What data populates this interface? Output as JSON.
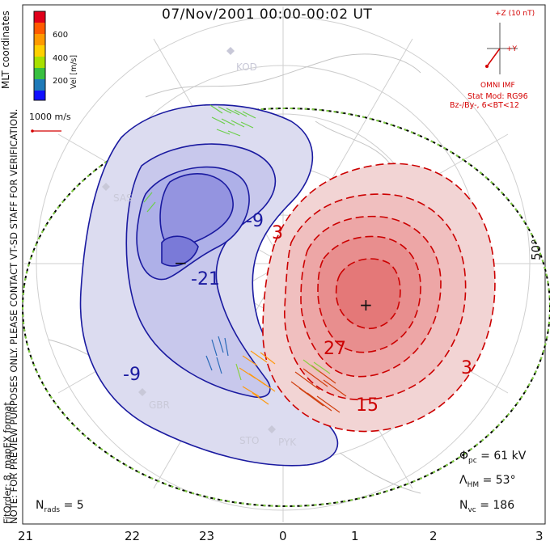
{
  "title": "07/Nov/2001 00:00-00:02 UT",
  "colorbar": {
    "label": "Vel [m/s]",
    "ticks": [
      "600",
      "400",
      "200"
    ],
    "colors": [
      "#e0001a",
      "#ff5a00",
      "#ffb000",
      "#a8e000",
      "#38c040",
      "#2aa08a",
      "#1060c0",
      "#1010ff"
    ]
  },
  "coords_label": "MLT coordinates",
  "velocity_scale": "1000 m/s",
  "imf": {
    "z_label": "+Z (10 nT)",
    "y_label": "+Y",
    "source": "OMNI IMF",
    "stat_mod": "Stat Mod: RG96",
    "condition": "Bz-/By-, 6<BT<12"
  },
  "note_lines": [
    "NOTE: FOR PREVIEW PURPOSES ONLY. PLEASE CONTACT VT-SD STAFF FOR VERIFICATION.",
    "FitOrder: 8, mapEX format"
  ],
  "latitude_label": "50°",
  "mlt_ticks": [
    "21",
    "22",
    "23",
    "0",
    "1",
    "2",
    "3"
  ],
  "radars": [
    "KOD",
    "SAS",
    "GBR",
    "STO",
    "PYK"
  ],
  "contour_labels": [
    "-21",
    "-9",
    "-9",
    "3",
    "27",
    "15",
    "3"
  ],
  "extrema": {
    "min": "−",
    "max": "+"
  },
  "params": {
    "phi_pc": "= 61 kV",
    "lambda_hm": "= 53°",
    "n_vc": "= 186",
    "n_rads": "= 5"
  },
  "colors": {
    "negative": "#1a1aa0",
    "positive": "#cc0000",
    "boundary": "#80d040"
  }
}
